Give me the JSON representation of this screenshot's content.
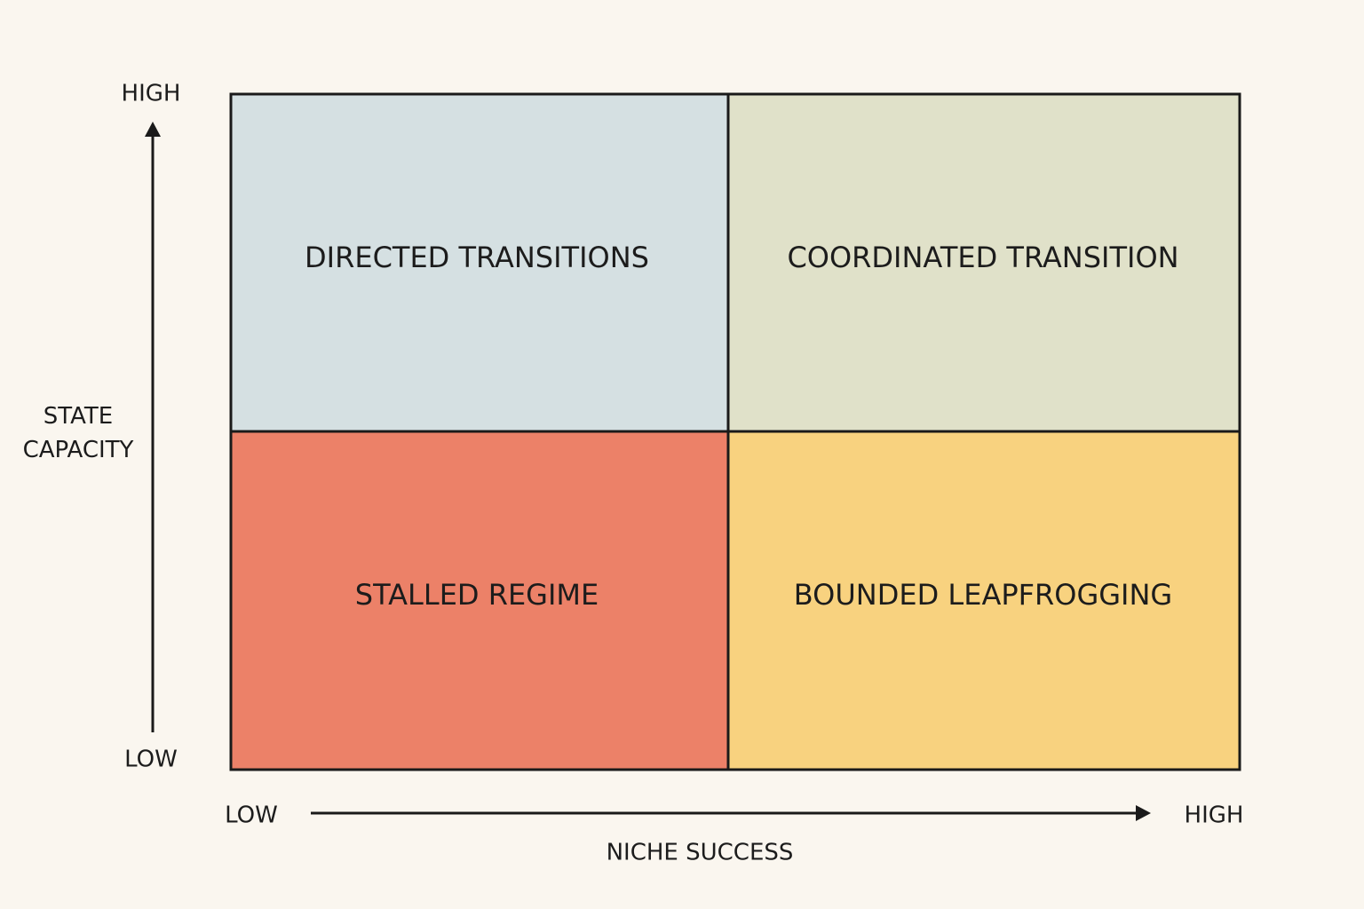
{
  "y_axis": {
    "label": "STATE CAPACITY",
    "high": "HIGH",
    "low": "LOW"
  },
  "x_axis": {
    "label": "NICHE SUCCESS",
    "low": "LOW",
    "high": "HIGH"
  },
  "quadrants": [
    {
      "label": "DIRECTED TRANSITIONS"
    },
    {
      "label": "COORDINATED TRANSITION"
    },
    {
      "label": "STALLED REGIME"
    },
    {
      "label": "BOUNDED LEAPFROGGING"
    }
  ]
}
